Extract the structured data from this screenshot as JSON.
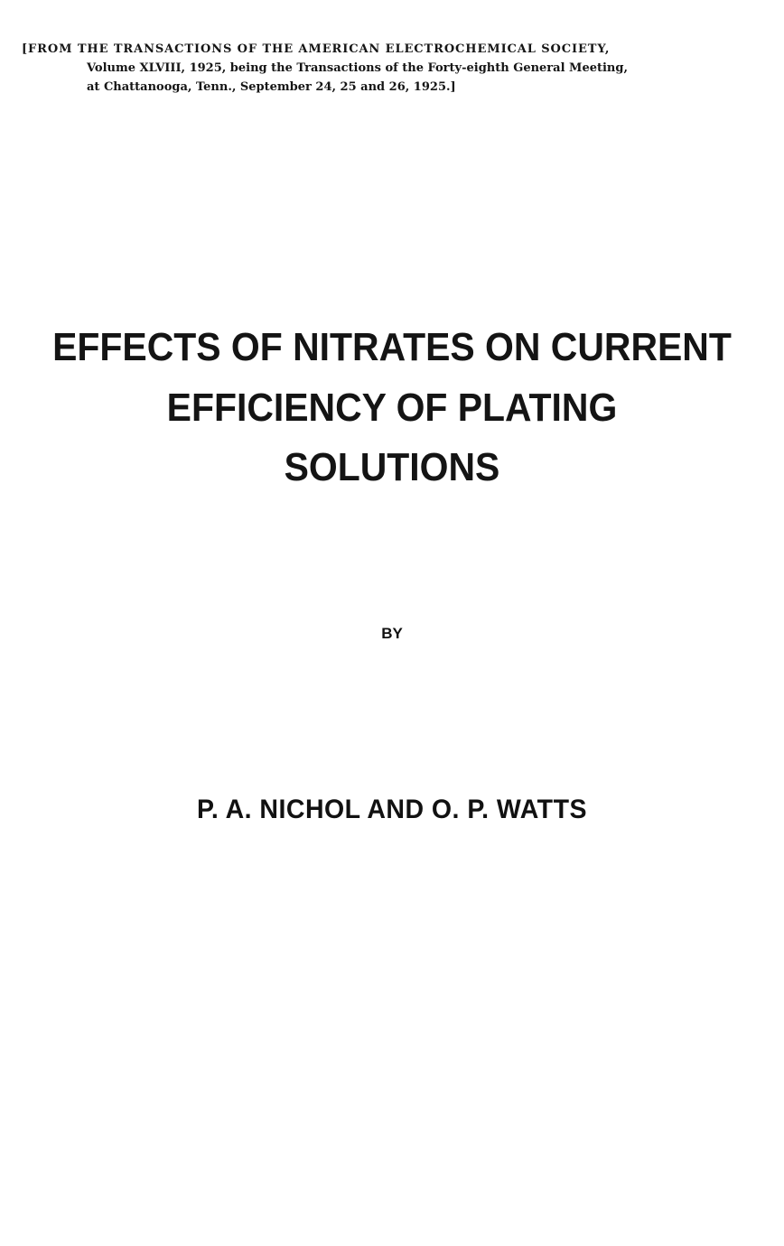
{
  "header": {
    "lines": [
      "[FROM THE TRANSACTIONS OF THE AMERICAN ELECTROCHEMICAL SOCIETY,",
      "Volume XLVIII, 1925, being the Transactions of the Forty-eighth General Meeting,",
      "at Chattanooga, Tenn., September 24, 25 and 26, 1925.]"
    ]
  },
  "title": {
    "lines": [
      "EFFECTS OF NITRATES ON CURRENT",
      "EFFICIENCY OF PLATING",
      "SOLUTIONS"
    ]
  },
  "byline": "BY",
  "authors": "P. A. NICHOL AND O. P. WATTS"
}
